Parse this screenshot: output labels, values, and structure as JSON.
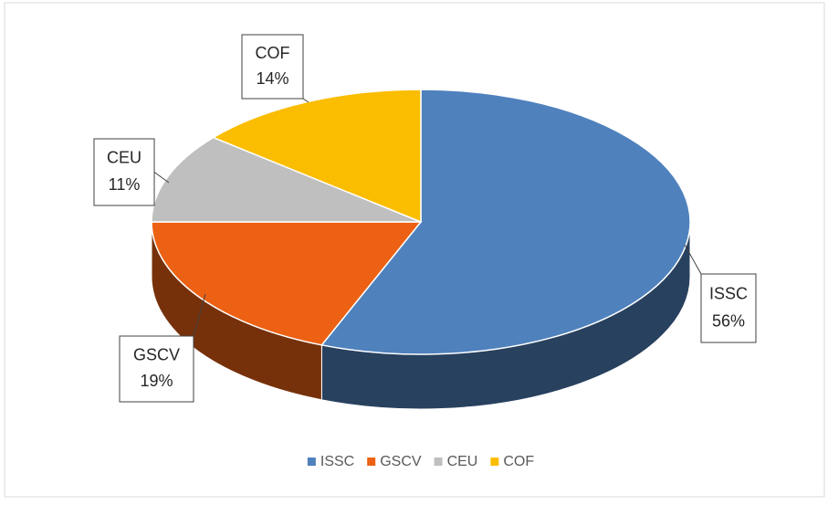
{
  "chart_data": {
    "type": "pie",
    "categories": [
      "ISSC",
      "GSCV",
      "CEU",
      "COF"
    ],
    "values": [
      56,
      19,
      11,
      14
    ],
    "value_labels": [
      "56%",
      "19%",
      "11%",
      "14%"
    ],
    "colors": [
      "#4f81bd",
      "#ec6113",
      "#bfbfbf",
      "#fbbd00"
    ],
    "legend": "bottom"
  }
}
